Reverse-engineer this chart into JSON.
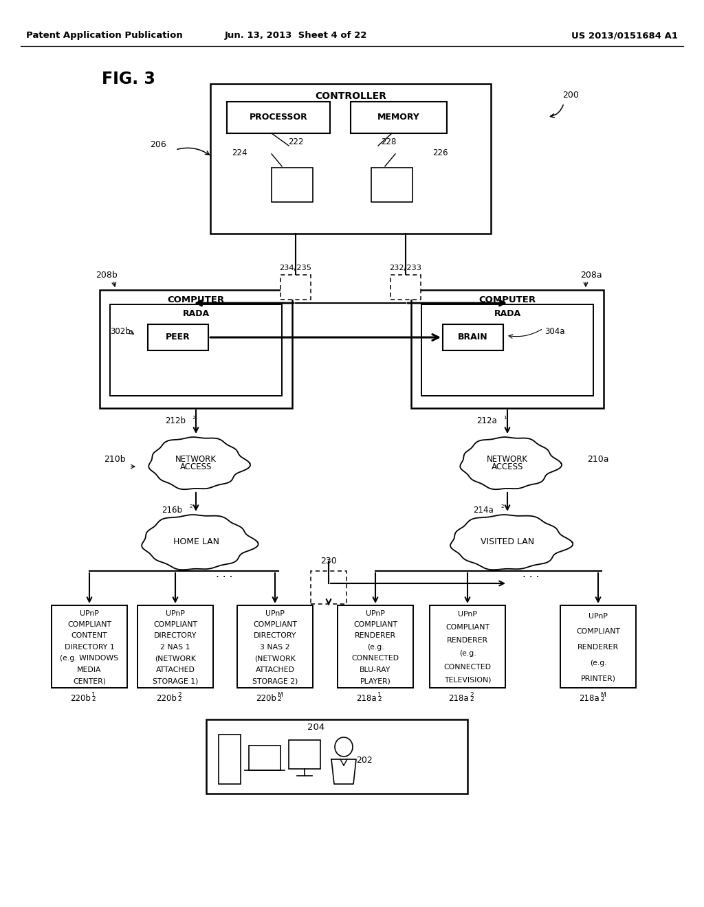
{
  "bg_color": "#ffffff",
  "header_left": "Patent Application Publication",
  "header_mid": "Jun. 13, 2013  Sheet 4 of 22",
  "header_right": "US 2013/0151684 A1"
}
